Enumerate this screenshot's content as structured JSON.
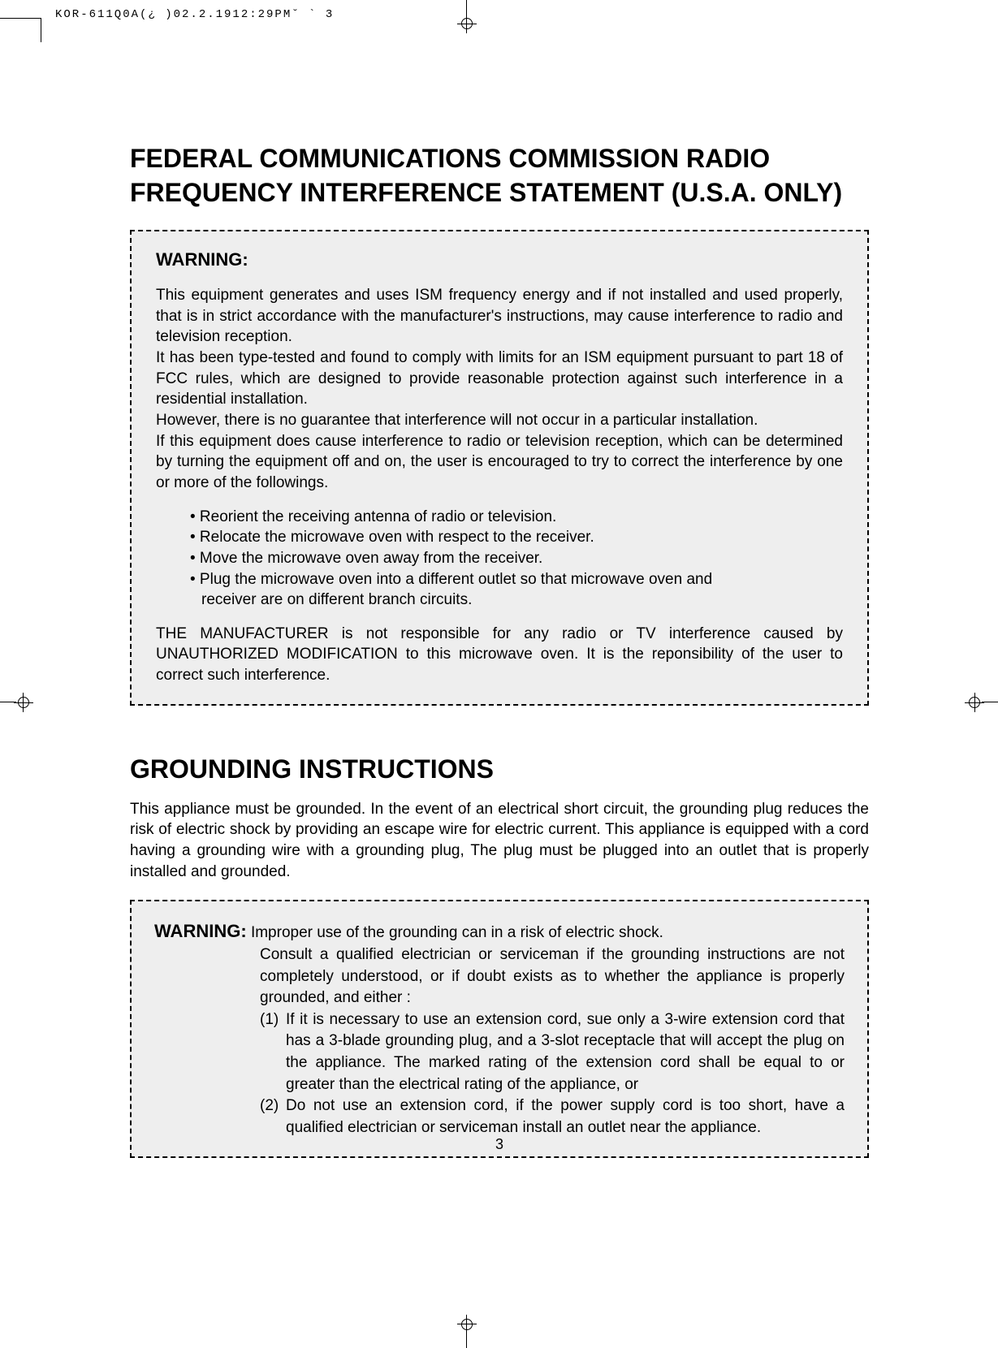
{
  "header_text": "KOR-611Q0A(¿ )02.2.1912:29PM˘  `  3",
  "page_number": "3",
  "main_heading": "FEDERAL COMMUNICATIONS COMMISSION RADIO FREQUENCY INTERFERENCE STATEMENT (U.S.A. ONLY)",
  "warning1": {
    "title": "WARNING:",
    "p1": "This equipment generates and uses ISM frequency energy and if not installed and used properly, that is in strict accordance with the manufacturer's instructions, may cause interference to radio and television reception.",
    "p2": "It has been type-tested and found to comply with limits for an ISM equipment pursuant to part 18 of FCC rules, which are designed to provide reasonable protection against such interference in a residential installation.",
    "p3": "However, there is no guarantee that interference will not occur in a particular installation.",
    "p4": "If this equipment does cause interference to radio or television reception, which can be determined by turning the equipment off and on, the user is encouraged to try to correct the interference by one or more of the followings.",
    "bullets": [
      "• Reorient the receiving antenna of radio or television.",
      "• Relocate the microwave oven with respect to the receiver.",
      "• Move the microwave oven away from the receiver.",
      "• Plug the microwave oven into a different outlet so that microwave oven and"
    ],
    "bullet_cont": "receiver are on different branch circuits.",
    "p5": "THE MANUFACTURER is not responsible for any radio or TV interference caused by UNAUTHORIZED MODIFICATION to this microwave oven. It is the reponsibility of the user to correct such interference."
  },
  "section2_heading": "GROUNDING INSTRUCTIONS",
  "section2_body": "This appliance must be grounded. In the event of an electrical short circuit, the grounding plug reduces the risk of electric shock by providing an escape wire for electric current. This appliance is equipped with a cord having a grounding wire with a grounding plug, The plug must be plugged into an outlet that is properly installed and grounded.",
  "warning2": {
    "label": "WARNING:",
    "line1": "Improper use of the grounding can in a risk of electric shock.",
    "line2": "Consult a qualified electrician or serviceman if the grounding instructions are not completely understood, or if doubt exists as to whether the appliance is properly grounded, and either :",
    "item1_num": "(1)",
    "item1_text": "If it is necessary to use an extension cord, sue only a 3-wire extension cord that has a 3-blade grounding plug, and a 3-slot receptacle that will accept the plug on the appliance. The marked rating of the extension cord shall be equal to or greater than the electrical rating of the appliance, or",
    "item2_num": "(2)",
    "item2_text": "Do not use an extension cord, if the power supply cord is too short, have a qualified electrician or serviceman install an outlet near the appliance."
  },
  "colors": {
    "background": "#ffffff",
    "text": "#000000",
    "box_bg": "#eeeeee",
    "border": "#000000"
  }
}
